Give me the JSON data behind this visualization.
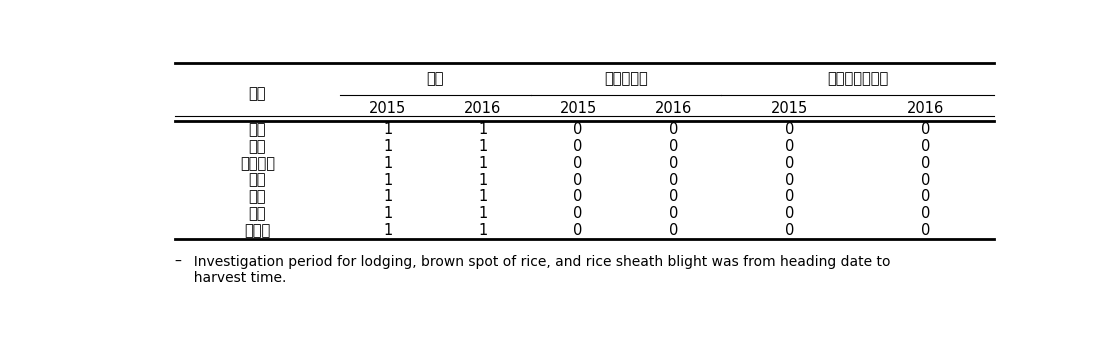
{
  "col_header_row1_label": "품종",
  "group_headers": [
    "도복",
    "깨씨무니병",
    "잎집무니마름병"
  ],
  "years": [
    "2015",
    "2016",
    "2015",
    "2016",
    "2015",
    "2016"
  ],
  "rows": [
    [
      "수광",
      "1",
      "1",
      "0",
      "0",
      "0",
      "0"
    ],
    [
      "미품",
      "1",
      "1",
      "0",
      "0",
      "0",
      "0"
    ],
    [
      "영호진미",
      "1",
      "1",
      "0",
      "0",
      "0",
      "0"
    ],
    [
      "해품",
      "1",
      "1",
      "0",
      "0",
      "0",
      "0"
    ],
    [
      "현품",
      "1",
      "1",
      "0",
      "0",
      "0",
      "0"
    ],
    [
      "호품",
      "1",
      "1",
      "0",
      "0",
      "0",
      "0"
    ],
    [
      "신동진",
      "1",
      "1",
      "0",
      "0",
      "0",
      "0"
    ]
  ],
  "footnote_dash": "–",
  "footnote_text": "  Investigation period for lodging, brown spot of rice, and rice sheath blight was from heading date to\n  harvest time.",
  "background_color": "#ffffff",
  "text_color": "#000000",
  "font_size": 10.5,
  "header_font_size": 10.5
}
